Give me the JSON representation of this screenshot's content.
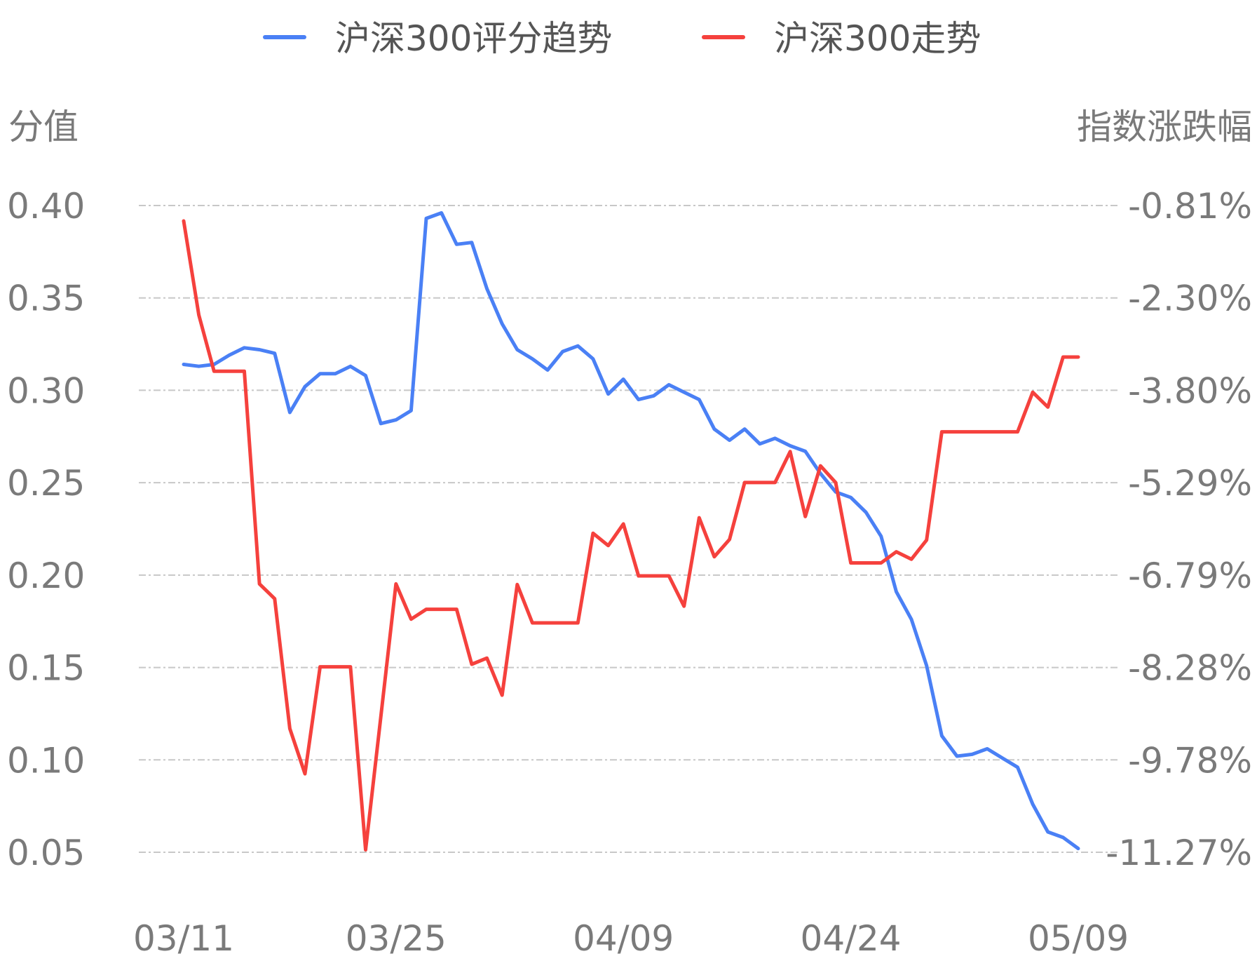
{
  "chart_data": {
    "type": "line",
    "legend": {
      "position": "top-center"
    },
    "y_left": {
      "label": "分值",
      "ticks": [
        "0.40",
        "0.35",
        "0.30",
        "0.25",
        "0.20",
        "0.15",
        "0.10",
        "0.05"
      ],
      "range": [
        0.05,
        0.4
      ]
    },
    "y_right": {
      "label": "指数涨跌幅",
      "ticks": [
        "-0.81%",
        "-2.30%",
        "-3.80%",
        "-5.29%",
        "-6.79%",
        "-8.28%",
        "-9.78%",
        "-11.27%"
      ],
      "range": [
        -11.27,
        -0.81
      ]
    },
    "x_ticks": [
      "03/11",
      "03/25",
      "04/09",
      "04/24",
      "05/09"
    ],
    "x_tick_index": [
      0,
      14,
      29,
      44,
      59
    ],
    "grid": true,
    "series": [
      {
        "name": "沪深300评分趋势",
        "axis": "left",
        "color": "#4a80f5",
        "values": [
          0.314,
          0.313,
          0.314,
          0.319,
          0.323,
          0.322,
          0.32,
          0.288,
          0.302,
          0.309,
          0.309,
          0.313,
          0.308,
          0.282,
          0.284,
          0.289,
          0.393,
          0.396,
          0.379,
          0.38,
          0.355,
          0.336,
          0.322,
          0.317,
          0.311,
          0.321,
          0.324,
          0.317,
          0.298,
          0.306,
          0.295,
          0.297,
          0.303,
          0.299,
          0.295,
          0.279,
          0.273,
          0.279,
          0.271,
          0.274,
          0.27,
          0.267,
          0.255,
          0.245,
          0.242,
          0.234,
          0.221,
          0.191,
          0.176,
          0.151,
          0.113,
          0.102,
          0.103,
          0.106,
          0.101,
          0.096,
          0.076,
          0.061,
          0.058,
          0.052
        ]
      },
      {
        "name": "沪深300走势",
        "axis": "right",
        "color": "#f5413d",
        "values": [
          -1.06,
          -2.58,
          -3.49,
          -3.49,
          -3.49,
          -6.93,
          -7.17,
          -9.27,
          -10.0,
          -8.27,
          -8.27,
          -8.27,
          -11.23,
          -9.08,
          -6.93,
          -7.5,
          -7.34,
          -7.34,
          -7.34,
          -8.23,
          -8.13,
          -8.73,
          -6.94,
          -7.56,
          -7.56,
          -7.56,
          -7.56,
          -6.11,
          -6.31,
          -5.96,
          -6.8,
          -6.8,
          -6.8,
          -7.29,
          -5.86,
          -6.49,
          -6.21,
          -5.29,
          -5.29,
          -5.29,
          -4.79,
          -5.84,
          -5.02,
          -5.29,
          -6.59,
          -6.59,
          -6.59,
          -6.41,
          -6.53,
          -6.22,
          -4.47,
          -4.47,
          -4.47,
          -4.47,
          -4.47,
          -4.47,
          -3.83,
          -4.07,
          -3.26,
          -3.26
        ]
      }
    ]
  }
}
